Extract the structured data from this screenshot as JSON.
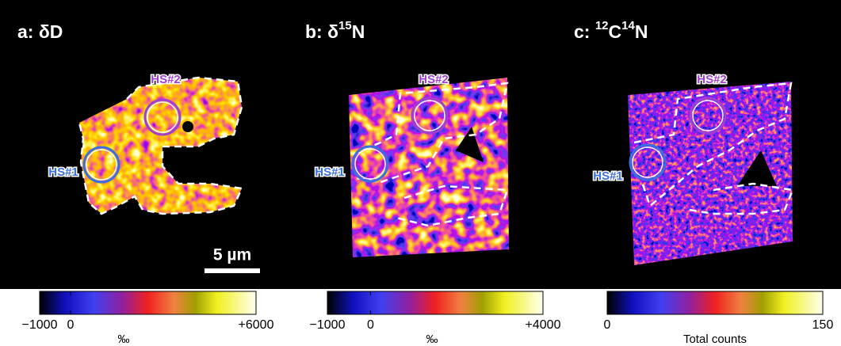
{
  "panels": [
    {
      "title": [
        {
          "text": "a: δD"
        }
      ],
      "hotspots": [
        "HS#1",
        "HS#2"
      ],
      "scale_bar": "5 µm",
      "colorbar": {
        "lim": [
          -1000,
          6000
        ],
        "ticks": [
          {
            "value": -1000,
            "label": "−1000"
          },
          0,
          {
            "value": 6000,
            "label": "+6000"
          }
        ],
        "unit": "‰"
      }
    },
    {
      "title": [
        {
          "text": "b: δ"
        },
        {
          "text": "15",
          "sup": true
        },
        {
          "text": "N"
        }
      ],
      "hotspots": [
        "HS#1",
        "HS#2"
      ],
      "colorbar": {
        "lim": [
          -1000,
          4000
        ],
        "ticks": [
          {
            "value": -1000,
            "label": "−1000"
          },
          0,
          {
            "value": 4000,
            "label": "+4000"
          }
        ],
        "unit": "‰"
      }
    },
    {
      "title": [
        {
          "text": "c: "
        },
        {
          "text": "12",
          "sup": true
        },
        {
          "text": "C"
        },
        {
          "text": "14",
          "sup": true
        },
        {
          "text": "N"
        }
      ],
      "hotspots": [
        "HS#1",
        "HS#2"
      ],
      "colorbar": {
        "lim": [
          0,
          150
        ],
        "ticks": [
          0,
          150
        ],
        "unit": "Total counts"
      }
    }
  ]
}
